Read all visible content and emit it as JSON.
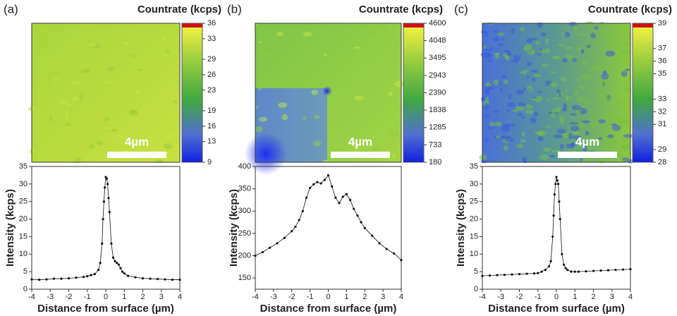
{
  "chart_data": [
    {
      "type": "heatmap",
      "panel_label": "(a)",
      "colorbar_title": "Countrate (kcps)",
      "clim": [
        9,
        36
      ],
      "cticks": [
        9,
        13,
        16,
        19,
        23,
        26,
        29,
        33,
        36
      ],
      "scale_bar": "4µm"
    },
    {
      "type": "line",
      "xlabel": "Distance from surface (µm)",
      "ylabel": "Intensity (kcps)",
      "color": "#111111",
      "x": [
        -4,
        -3.6,
        -3.2,
        -2.8,
        -2.4,
        -2,
        -1.6,
        -1.2,
        -1,
        -0.8,
        -0.6,
        -0.4,
        -0.3,
        -0.2,
        -0.15,
        -0.1,
        -0.05,
        0,
        0.05,
        0.1,
        0.15,
        0.2,
        0.3,
        0.4,
        0.5,
        0.6,
        0.7,
        0.8,
        0.9,
        1,
        1.2,
        1.6,
        2,
        2.4,
        2.8,
        3.2,
        3.6,
        4
      ],
      "values": [
        2.8,
        2.7,
        2.8,
        3,
        3,
        3.1,
        3.3,
        3.5,
        3.7,
        4,
        4.3,
        5.5,
        7.5,
        13,
        20,
        25,
        29,
        32,
        31.5,
        30,
        26,
        22,
        13,
        9,
        8,
        7.5,
        7,
        6,
        5,
        4.5,
        3.8,
        3.4,
        3.1,
        3,
        2.9,
        2.8,
        2.7,
        2.7
      ],
      "xlim": [
        -4,
        4
      ],
      "ylim": [
        0,
        35
      ],
      "xticks": [
        -4,
        -3,
        -2,
        -1,
        0,
        1,
        2,
        3,
        4
      ],
      "yticks": [
        0,
        5,
        10,
        15,
        20,
        25,
        30,
        35
      ]
    },
    {
      "type": "heatmap",
      "panel_label": "(b)",
      "colorbar_title": "Countrate (kcps)",
      "clim": [
        180,
        4600
      ],
      "cticks": [
        180,
        733,
        1285,
        1838,
        2390,
        2943,
        3495,
        4048,
        4600
      ],
      "scale_bar": "4µm"
    },
    {
      "type": "line",
      "xlabel": "Distance from surface (µm)",
      "ylabel": "Intensity (kcps)",
      "color": "#111111",
      "x": [
        -4,
        -3.6,
        -3.2,
        -2.8,
        -2.4,
        -2,
        -1.8,
        -1.6,
        -1.4,
        -1.2,
        -1,
        -0.8,
        -0.6,
        -0.4,
        -0.2,
        0,
        0.2,
        0.4,
        0.6,
        0.8,
        1,
        1.2,
        1.4,
        1.6,
        1.8,
        2,
        2.4,
        2.8,
        3.2,
        3.6,
        4
      ],
      "values": [
        200,
        208,
        218,
        228,
        240,
        255,
        265,
        280,
        300,
        330,
        352,
        360,
        365,
        362,
        370,
        380,
        355,
        330,
        318,
        332,
        338,
        325,
        305,
        290,
        275,
        262,
        245,
        228,
        215,
        205,
        190
      ],
      "xlim": [
        -4,
        4
      ],
      "ylim": [
        125,
        400
      ],
      "xticks": [
        -4,
        -3,
        -2,
        -1,
        0,
        1,
        2,
        3,
        4
      ],
      "yticks": [
        150,
        200,
        250,
        300,
        350,
        400
      ]
    },
    {
      "type": "heatmap",
      "panel_label": "(c)",
      "colorbar_title": "Countrate (kcps)",
      "clim": [
        28,
        39
      ],
      "cticks": [
        28,
        29,
        31,
        32,
        33,
        35,
        36,
        37,
        39
      ],
      "scale_bar": "4µm"
    },
    {
      "type": "line",
      "xlabel": "Distance from surface (µm)",
      "ylabel": "Intensity (kcps)",
      "color": "#111111",
      "x": [
        -4,
        -3.6,
        -3.2,
        -2.8,
        -2.4,
        -2,
        -1.6,
        -1.2,
        -1,
        -0.8,
        -0.6,
        -0.4,
        -0.3,
        -0.2,
        -0.15,
        -0.1,
        -0.05,
        0,
        0.05,
        0.1,
        0.15,
        0.2,
        0.3,
        0.4,
        0.5,
        0.6,
        0.8,
        1,
        1.2,
        1.6,
        2,
        2.4,
        2.8,
        3.2,
        3.6,
        4
      ],
      "values": [
        3.8,
        3.9,
        4,
        4.1,
        4.2,
        4.3,
        4.4,
        4.5,
        4.6,
        5,
        5.5,
        6.5,
        8,
        15,
        21,
        27,
        30,
        32,
        31,
        30,
        25,
        20,
        10,
        7,
        6,
        5.5,
        5,
        5,
        5,
        5.1,
        5.2,
        5.3,
        5.4,
        5.5,
        5.6,
        5.7
      ],
      "xlim": [
        -4,
        4
      ],
      "ylim": [
        0,
        35
      ],
      "xticks": [
        -4,
        -3,
        -2,
        -1,
        0,
        1,
        2,
        3,
        4
      ],
      "yticks": [
        0,
        5,
        10,
        15,
        20,
        25,
        30,
        35
      ]
    }
  ]
}
